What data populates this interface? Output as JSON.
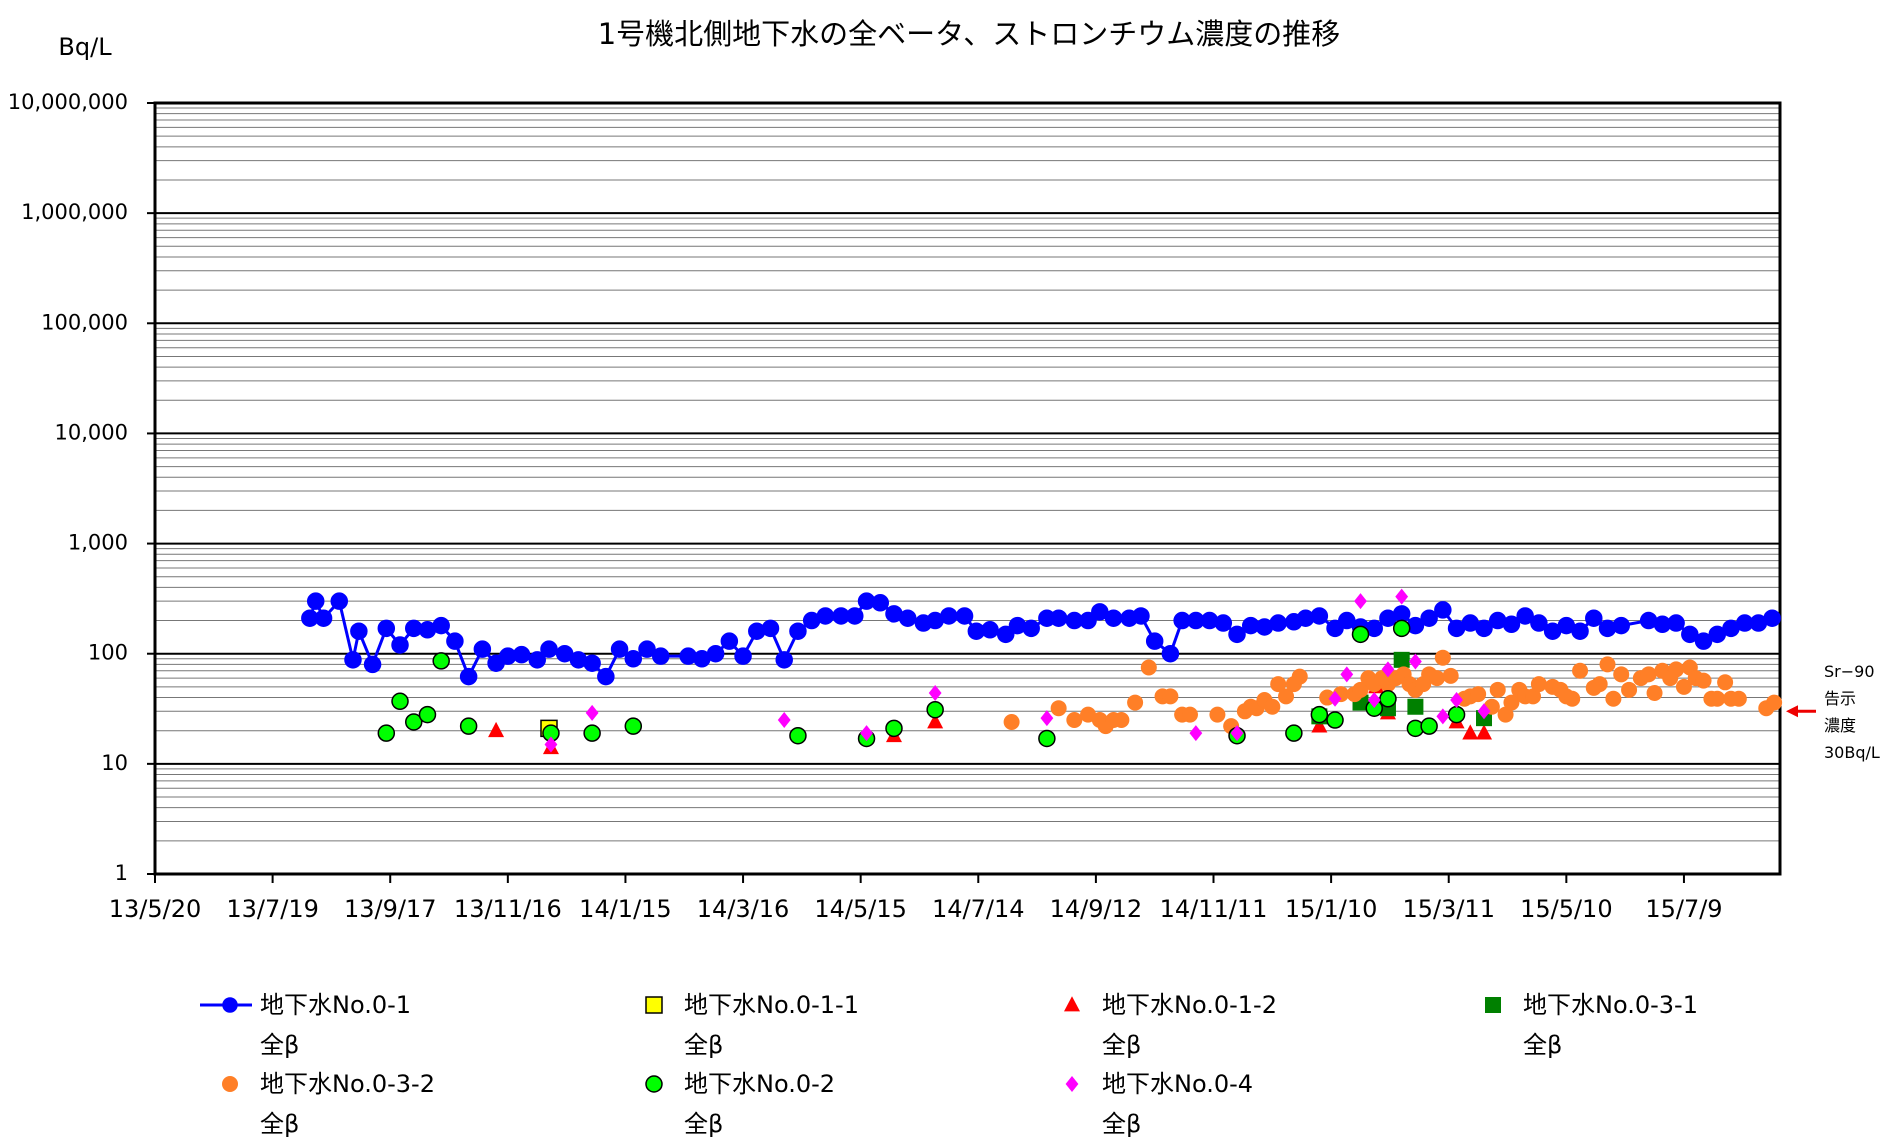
{
  "chart_data": {
    "type": "scatter",
    "title": "1号機北側地下水の全ベータ、ストロンチウム濃度の推移",
    "y_label": "Bq/L",
    "log_y": true,
    "grid": true,
    "minor_grid": true,
    "xlim": [
      "13/5/20",
      "15/8/27"
    ],
    "xticks": [
      "13/5/20",
      "13/7/19",
      "13/9/17",
      "13/11/16",
      "14/1/15",
      "14/3/16",
      "14/5/15",
      "14/7/14",
      "14/9/12",
      "14/11/11",
      "15/1/10",
      "15/3/11",
      "15/5/10",
      "15/7/9"
    ],
    "ylim": [
      1,
      10000000
    ],
    "yticks": [
      1,
      10,
      100,
      {
        "value": 1000,
        "label": "1,000"
      },
      {
        "value": 10000,
        "label": "10,000"
      },
      {
        "value": 100000,
        "label": "100,000"
      },
      {
        "value": 1000000,
        "label": "1,000,000"
      },
      {
        "value": 10000000,
        "label": "10,000,000"
      }
    ],
    "annotation": {
      "text": "Sr−90\n告示\n濃度\n30Bq/L",
      "y": 30
    },
    "series": [
      {
        "name": "地下水No.0-1\n全β",
        "color": "#0000ff",
        "marker": "circle",
        "line": true,
        "x": [
          "13/8/7",
          "13/8/10",
          "13/8/14",
          "13/8/22",
          "13/8/29",
          "13/9/1",
          "13/9/8",
          "13/9/15",
          "13/9/22",
          "13/9/29",
          "13/10/6",
          "13/10/13",
          "13/10/20",
          "13/10/27",
          "13/11/3",
          "13/11/10",
          "13/11/16",
          "13/11/23",
          "13/12/1",
          "13/12/7",
          "13/12/15",
          "13/12/22",
          "13/12/29",
          "14/1/5",
          "14/1/12",
          "14/1/19",
          "14/1/26",
          "14/2/2",
          "14/2/16",
          "14/2/23",
          "14/3/2",
          "14/3/9",
          "14/3/16",
          "14/3/23",
          "14/3/30",
          "14/4/6",
          "14/4/13",
          "14/4/20",
          "14/4/27",
          "14/5/5",
          "14/5/12",
          "14/5/18",
          "14/5/25",
          "14/6/1",
          "14/6/8",
          "14/6/16",
          "14/6/22",
          "14/6/29",
          "14/7/7",
          "14/7/13",
          "14/7/20",
          "14/7/28",
          "14/8/3",
          "14/8/10",
          "14/8/18",
          "14/8/24",
          "14/9/1",
          "14/9/8",
          "14/9/14",
          "14/9/21",
          "14/9/29",
          "14/10/5",
          "14/10/12",
          "14/10/20",
          "14/10/26",
          "14/11/2",
          "14/11/9",
          "14/11/16",
          "14/11/23",
          "14/11/30",
          "14/12/7",
          "14/12/14",
          "14/12/22",
          "14/12/28",
          "15/1/4",
          "15/1/12",
          "15/1/18",
          "15/1/25",
          "15/2/1",
          "15/2/8",
          "15/2/15",
          "15/2/22",
          "15/3/1",
          "15/3/8",
          "15/3/15",
          "15/3/22",
          "15/3/29",
          "15/4/5",
          "15/4/12",
          "15/4/19",
          "15/4/26",
          "15/5/3",
          "15/5/10",
          "15/5/17",
          "15/5/24",
          "15/5/31",
          "15/6/7",
          "15/6/21",
          "15/6/28",
          "15/7/5",
          "15/7/12",
          "15/7/19",
          "15/7/26",
          "15/8/2",
          "15/8/9",
          "15/8/16",
          "15/8/23"
        ],
        "values": [
          210,
          300,
          210,
          300,
          88,
          160,
          80,
          170,
          120,
          170,
          165,
          180,
          130,
          62,
          110,
          82,
          95,
          98,
          88,
          110,
          100,
          88,
          82,
          62,
          110,
          90,
          110,
          95,
          95,
          90,
          100,
          130,
          95,
          160,
          170,
          88,
          160,
          200,
          220,
          220,
          220,
          300,
          290,
          230,
          210,
          190,
          200,
          220,
          220,
          160,
          165,
          150,
          180,
          170,
          210,
          210,
          200,
          200,
          240,
          210,
          210,
          220,
          130,
          100,
          200,
          200,
          200,
          190,
          150,
          180,
          175,
          190,
          195,
          210,
          220,
          170,
          200,
          175,
          170,
          210,
          230,
          180,
          210,
          250,
          170,
          190,
          170,
          200,
          185,
          220,
          190,
          160,
          180,
          160,
          210,
          170,
          180,
          200,
          185,
          190,
          150,
          130,
          150,
          170,
          190,
          190,
          210
        ]
      },
      {
        "name": "地下水No.0-1-1\n全β",
        "color": "#ffff00",
        "marker": "square",
        "line": false,
        "x": [
          "13/12/7"
        ],
        "values": [
          21
        ]
      },
      {
        "name": "地下水No.0-1-2\n全β",
        "color": "#ff0000",
        "marker": "triangle",
        "line": false,
        "x": [
          "13/11/10",
          "13/12/8",
          "14/6/1",
          "14/6/22",
          "15/1/4",
          "15/2/2",
          "15/2/8",
          "15/3/15",
          "15/3/22",
          "15/3/29"
        ],
        "values": [
          20,
          14,
          18,
          24,
          22,
          50,
          29,
          24,
          19,
          19
        ]
      },
      {
        "name": "地下水No.0-3-1\n全β",
        "color": "#008000",
        "marker": "square",
        "line": false,
        "x": [
          "15/1/4",
          "15/1/25",
          "15/2/8",
          "15/2/15",
          "15/2/22",
          "15/3/29"
        ],
        "values": [
          27,
          36,
          32,
          88,
          33,
          26
        ]
      },
      {
        "name": "地下水No.0-3-2\n全β",
        "color": "#ff7f27",
        "marker": "circle",
        "line": false,
        "x": [
          "14/7/31",
          "14/8/24",
          "14/9/1",
          "14/9/8",
          "14/9/14",
          "14/9/17",
          "14/9/21",
          "14/9/25",
          "14/10/2",
          "14/10/9",
          "14/10/16",
          "14/10/20",
          "14/10/26",
          "14/10/30",
          "14/11/13",
          "14/11/20",
          "14/11/27",
          "14/11/30",
          "14/12/3",
          "14/12/7",
          "14/12/11",
          "14/12/14",
          "14/12/18",
          "14/12/22",
          "14/12/25",
          "15/1/8",
          "15/1/15",
          "15/1/22",
          "15/1/25",
          "15/1/29",
          "15/2/1",
          "15/2/5",
          "15/2/8",
          "15/2/12",
          "15/2/16",
          "15/2/19",
          "15/2/22",
          "15/2/26",
          "15/3/1",
          "15/3/5",
          "15/3/8",
          "15/3/12",
          "15/3/19",
          "15/3/22",
          "15/3/26",
          "15/4/2",
          "15/4/5",
          "15/4/9",
          "15/4/12",
          "15/4/16",
          "15/4/19",
          "15/4/23",
          "15/4/26",
          "15/5/3",
          "15/5/7",
          "15/5/10",
          "15/5/13",
          "15/5/17",
          "15/5/24",
          "15/5/27",
          "15/5/31",
          "15/6/3",
          "15/6/7",
          "15/6/11",
          "15/6/17",
          "15/6/21",
          "15/6/24",
          "15/6/28",
          "15/7/2",
          "15/7/5",
          "15/7/9",
          "15/7/12",
          "15/7/15",
          "15/7/19",
          "15/7/23",
          "15/7/26",
          "15/7/30",
          "15/8/2",
          "15/8/6",
          "15/8/20",
          "15/8/24"
        ],
        "values": [
          24,
          32,
          25,
          28,
          25,
          22,
          25,
          25,
          36,
          75,
          41,
          41,
          28,
          28,
          28,
          22,
          30,
          33,
          32,
          38,
          33,
          53,
          41,
          53,
          62,
          40,
          43,
          43,
          47,
          60,
          53,
          60,
          53,
          60,
          65,
          53,
          47,
          53,
          65,
          60,
          92,
          63,
          39,
          41,
          43,
          33,
          47,
          28,
          36,
          47,
          41,
          41,
          53,
          50,
          47,
          41,
          39,
          70,
          49,
          53,
          80,
          39,
          65,
          47,
          60,
          65,
          44,
          70,
          60,
          72,
          50,
          75,
          60,
          57,
          39,
          39,
          55,
          39,
          39,
          32,
          36
        ]
      },
      {
        "name": "地下水No.0-2\n全β",
        "color": "#00ff00",
        "marker": "circle",
        "line": false,
        "x": [
          "13/9/15",
          "13/9/22",
          "13/9/29",
          "13/10/6",
          "13/10/13",
          "13/10/27",
          "13/12/8",
          "13/12/29",
          "14/1/19",
          "14/4/13",
          "14/5/18",
          "14/6/1",
          "14/6/22",
          "14/8/18",
          "14/11/23",
          "14/12/22",
          "15/1/4",
          "15/1/12",
          "15/1/25",
          "15/2/1",
          "15/2/8",
          "15/2/15",
          "15/2/22",
          "15/3/1",
          "15/3/15"
        ],
        "values": [
          19,
          37,
          24,
          28,
          86,
          22,
          19,
          19,
          22,
          18,
          17,
          21,
          31,
          17,
          18,
          19,
          28,
          25,
          150,
          32,
          39,
          170,
          21,
          22,
          28
        ]
      },
      {
        "name": "地下水No.0-4\n全β",
        "color": "#ff00ff",
        "marker": "diamond",
        "line": false,
        "x": [
          "13/12/8",
          "13/12/29",
          "14/4/6",
          "14/5/18",
          "14/6/22",
          "14/8/18",
          "14/11/2",
          "14/11/23",
          "15/1/12",
          "15/1/18",
          "15/1/25",
          "15/2/1",
          "15/2/8",
          "15/2/15",
          "15/2/22",
          "15/3/8",
          "15/3/15",
          "15/3/29"
        ],
        "values": [
          15,
          29,
          25,
          19,
          44,
          26,
          19,
          19,
          39,
          65,
          300,
          38,
          72,
          330,
          85,
          27,
          38,
          30
        ]
      }
    ]
  }
}
